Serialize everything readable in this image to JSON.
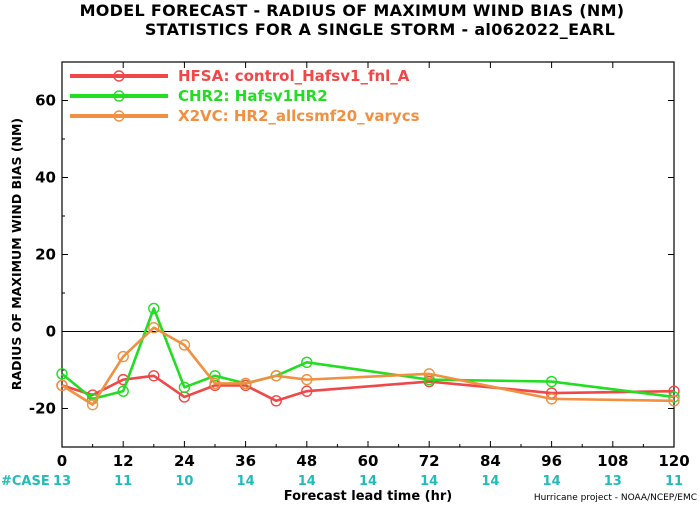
{
  "chart_data": {
    "type": "line",
    "title": "MODEL FORECAST - RADIUS OF MAXIMUM WIND BIAS (NM)",
    "subtitle": "STATISTICS FOR A SINGLE STORM - al062022_EARL",
    "xlabel": "Forecast lead time (hr)",
    "ylabel": "RADIUS OF MAXIMUM WIND BIAS (NM)",
    "xlim": [
      0,
      120
    ],
    "ylim": [
      -30,
      70
    ],
    "x_ticks": [
      0,
      12,
      24,
      36,
      48,
      60,
      72,
      84,
      96,
      108,
      120
    ],
    "y_ticks": [
      -20,
      0,
      20,
      40,
      60
    ],
    "zero_line": true,
    "grid": false,
    "legend_position": "top-left",
    "series": [
      {
        "name": "HFSA: control_Hafsv1_fnl_A",
        "color": "#f04848",
        "x": [
          0,
          6,
          12,
          18,
          24,
          30,
          36,
          42,
          48,
          72,
          96,
          120
        ],
        "y": [
          -14,
          -16.5,
          -12.5,
          -11.5,
          -17,
          -14,
          -14,
          -18,
          -15.5,
          -13,
          -16,
          -15.5
        ]
      },
      {
        "name": "CHR2: Hafsv1HR2",
        "color": "#22dd22",
        "x": [
          0,
          6,
          12,
          18,
          24,
          30,
          36,
          42,
          48,
          72,
          96,
          120
        ],
        "y": [
          -11,
          -17.5,
          -15.5,
          6,
          -14.5,
          -11.5,
          -13.5,
          -11.5,
          -8,
          -12.5,
          -13,
          -17
        ]
      },
      {
        "name": "X2VC: HR2_allcsmf20_varycs",
        "color": "#f09040",
        "x": [
          0,
          6,
          12,
          18,
          24,
          30,
          36,
          42,
          48,
          72,
          96,
          120
        ],
        "y": [
          -14,
          -19,
          -6.5,
          1,
          -3.5,
          -13.5,
          -13.5,
          -11.5,
          -12.5,
          -11,
          -17.5,
          -18
        ]
      }
    ],
    "case_label": "#CASE",
    "case_label_color": "#22bbbb",
    "cases": [
      {
        "x": 0,
        "n": "13"
      },
      {
        "x": 12,
        "n": "11"
      },
      {
        "x": 24,
        "n": "10"
      },
      {
        "x": 36,
        "n": "14"
      },
      {
        "x": 48,
        "n": "14"
      },
      {
        "x": 60,
        "n": "14"
      },
      {
        "x": 72,
        "n": "14"
      },
      {
        "x": 84,
        "n": "14"
      },
      {
        "x": 96,
        "n": "14"
      },
      {
        "x": 108,
        "n": "13"
      },
      {
        "x": 120,
        "n": "11"
      }
    ],
    "credit": "Hurricane project - NOAA/NCEP/EMC"
  }
}
